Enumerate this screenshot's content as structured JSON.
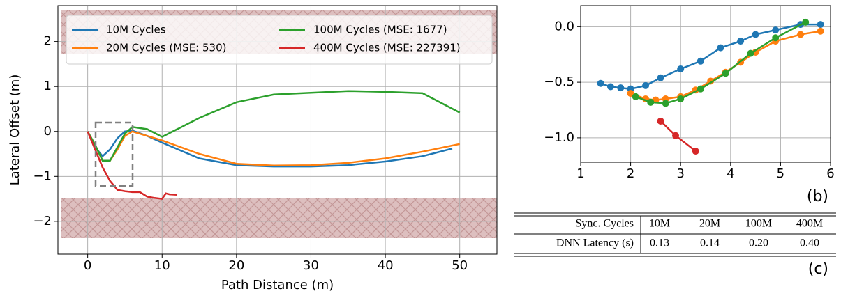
{
  "chart_data": [
    {
      "type": "line",
      "xlabel": "Path Distance (m)",
      "ylabel": "Lateral Offset (m)",
      "xlim": [
        -4,
        55
      ],
      "ylim": [
        -2.73,
        2.8
      ],
      "xticks": [
        0,
        10,
        20,
        30,
        40,
        50
      ],
      "yticks": [
        {
          "value": -2,
          "label": "−2"
        },
        {
          "value": -1,
          "label": "−1"
        },
        0,
        1,
        2
      ],
      "grid": true,
      "legend": "top",
      "series": [
        {
          "name": "10M Cycles",
          "color": "#1f77b4",
          "x": [
            0,
            1,
            2,
            3,
            4,
            5,
            6,
            8,
            10,
            15,
            20,
            25,
            30,
            35,
            40,
            45,
            49
          ],
          "values": [
            0,
            -0.35,
            -0.55,
            -0.4,
            -0.15,
            0,
            0.02,
            -0.1,
            -0.25,
            -0.6,
            -0.75,
            -0.78,
            -0.78,
            -0.75,
            -0.67,
            -0.55,
            -0.38
          ]
        },
        {
          "name": "20M Cycles  (MSE: 530)",
          "color": "#ff7f0e",
          "x": [
            0,
            1,
            2,
            3,
            4,
            5,
            6,
            8,
            10,
            15,
            20,
            25,
            30,
            35,
            40,
            45,
            50
          ],
          "values": [
            0,
            -0.3,
            -0.65,
            -0.65,
            -0.4,
            -0.1,
            0,
            -0.1,
            -0.2,
            -0.5,
            -0.72,
            -0.76,
            -0.75,
            -0.7,
            -0.6,
            -0.45,
            -0.28
          ]
        },
        {
          "name": "100M Cycles (MSE: 1677)",
          "color": "#2ca02c",
          "x": [
            0,
            1,
            2,
            3,
            4,
            5,
            6,
            8,
            10,
            15,
            20,
            25,
            30,
            35,
            40,
            45,
            50
          ],
          "values": [
            0,
            -0.3,
            -0.65,
            -0.65,
            -0.35,
            -0.05,
            0.1,
            0.05,
            -0.12,
            0.3,
            0.65,
            0.82,
            0.86,
            0.9,
            0.88,
            0.85,
            0.42
          ]
        },
        {
          "name": "400M Cycles (MSE: 227391)",
          "color": "#d62728",
          "x": [
            0,
            1,
            2,
            3,
            4,
            5,
            6,
            7,
            8,
            9,
            10,
            10.5,
            11,
            12
          ],
          "values": [
            0,
            -0.4,
            -0.8,
            -1.1,
            -1.3,
            -1.33,
            -1.35,
            -1.35,
            -1.45,
            -1.48,
            -1.5,
            -1.38,
            -1.4,
            -1.41
          ]
        }
      ]
    },
    {
      "type": "line",
      "panel_label": "(b)",
      "markers": true,
      "xlim": [
        1,
        6
      ],
      "ylim": [
        -1.22,
        0.19
      ],
      "xticks": [
        1,
        2,
        3,
        4,
        5,
        6
      ],
      "yticks": [
        {
          "value": -1,
          "label": "−1.0"
        },
        {
          "value": -0.5,
          "label": "−0.5"
        },
        {
          "value": 0,
          "label": "0.0"
        }
      ],
      "grid": true,
      "series": [
        {
          "color": "#1f77b4",
          "x": [
            1.4,
            1.6,
            1.8,
            2.0,
            2.3,
            2.6,
            3.0,
            3.4,
            3.8,
            4.2,
            4.5,
            4.9,
            5.4,
            5.8
          ],
          "values": [
            -0.51,
            -0.54,
            -0.55,
            -0.56,
            -0.53,
            -0.46,
            -0.38,
            -0.31,
            -0.19,
            -0.13,
            -0.07,
            -0.03,
            0.02,
            0.02
          ]
        },
        {
          "color": "#ff7f0e",
          "x": [
            2.0,
            2.3,
            2.5,
            2.7,
            3.0,
            3.3,
            3.6,
            3.9,
            4.2,
            4.5,
            4.9,
            5.4,
            5.8
          ],
          "values": [
            -0.6,
            -0.65,
            -0.66,
            -0.65,
            -0.63,
            -0.57,
            -0.49,
            -0.41,
            -0.32,
            -0.23,
            -0.13,
            -0.07,
            -0.04
          ]
        },
        {
          "color": "#2ca02c",
          "x": [
            2.1,
            2.4,
            2.7,
            3.0,
            3.4,
            3.9,
            4.4,
            4.9,
            5.5
          ],
          "values": [
            -0.63,
            -0.68,
            -0.69,
            -0.65,
            -0.56,
            -0.42,
            -0.24,
            -0.1,
            0.04
          ]
        },
        {
          "color": "#d62728",
          "x": [
            2.6,
            2.9,
            3.3
          ],
          "values": [
            -0.85,
            -0.98,
            -1.12
          ]
        }
      ]
    }
  ],
  "table": {
    "panel_label": "(c)",
    "rows": [
      [
        "Sync. Cycles",
        "10M",
        "20M",
        "100M",
        "400M"
      ],
      [
        "DNN Latency (s)",
        "0.13",
        "0.14",
        "0.20",
        "0.40"
      ]
    ]
  }
}
